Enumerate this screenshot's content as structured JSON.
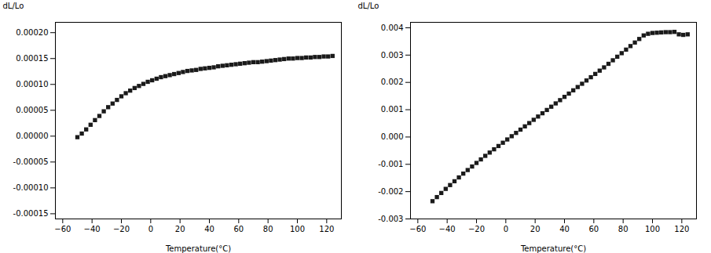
{
  "chart_data": [
    {
      "type": "scatter",
      "xlabel": "Temperature(°C)",
      "ylabel": "dL/Lo",
      "xlim": [
        -65,
        130
      ],
      "ylim": [
        -0.00016,
        0.00022
      ],
      "xticks": [
        -60,
        -40,
        -20,
        0,
        20,
        40,
        60,
        80,
        100,
        120
      ],
      "yticks": [
        {
          "value": -0.00015,
          "label": "-0.00015"
        },
        {
          "value": -0.0001,
          "label": "-0.00010"
        },
        {
          "value": -5e-05,
          "label": "-0.00005"
        },
        {
          "value": 0,
          "label": "0.00000"
        },
        {
          "value": 5e-05,
          "label": "0.00005"
        },
        {
          "value": 0.0001,
          "label": "0.00010"
        },
        {
          "value": 0.00015,
          "label": "0.00015"
        },
        {
          "value": 0.0002,
          "label": "0.00020"
        }
      ],
      "x": [
        -50,
        -47,
        -44,
        -41,
        -38,
        -35,
        -32,
        -29,
        -26,
        -23,
        -20,
        -17,
        -14,
        -11,
        -8,
        -5,
        -2,
        1,
        4,
        7,
        10,
        13,
        16,
        19,
        22,
        25,
        28,
        31,
        34,
        37,
        40,
        43,
        46,
        49,
        52,
        55,
        58,
        61,
        64,
        67,
        70,
        73,
        76,
        79,
        82,
        85,
        88,
        91,
        94,
        97,
        100,
        103,
        106,
        109,
        112,
        115,
        118,
        121,
        124
      ],
      "values": [
        -2e-06,
        5e-06,
        1.3e-05,
        2.2e-05,
        3.1e-05,
        3.9e-05,
        4.8e-05,
        5.6e-05,
        6.3e-05,
        7e-05,
        7.7e-05,
        8.3e-05,
        8.8e-05,
        9.3e-05,
        9.7e-05,
        0.000101,
        0.000105,
        0.000108,
        0.000111,
        0.000114,
        0.000116,
        0.000118,
        0.00012,
        0.000122,
        0.000124,
        0.000126,
        0.000127,
        0.000128,
        0.00013,
        0.000131,
        0.000132,
        0.000133,
        0.000135,
        0.000136,
        0.000137,
        0.000138,
        0.000139,
        0.00014,
        0.000141,
        0.000142,
        0.000143,
        0.000143,
        0.000144,
        0.000145,
        0.000146,
        0.000147,
        0.000148,
        0.000149,
        0.00015,
        0.00015,
        0.000151,
        0.000151,
        0.000152,
        0.000152,
        0.000153,
        0.000153,
        0.000154,
        0.000154,
        0.000155
      ],
      "color": "#1a1a1a",
      "marker": "square",
      "grid": false
    },
    {
      "type": "scatter",
      "xlabel": "Temperature(°C)",
      "ylabel": "dL/Lo",
      "xlim": [
        -65,
        130
      ],
      "ylim": [
        -0.003,
        0.0042
      ],
      "xticks": [
        -60,
        -40,
        -20,
        0,
        20,
        40,
        60,
        80,
        100,
        120
      ],
      "yticks": [
        {
          "value": -0.003,
          "label": "-0.003"
        },
        {
          "value": -0.002,
          "label": "-0.002"
        },
        {
          "value": -0.001,
          "label": "-0.001"
        },
        {
          "value": 0,
          "label": "0.000"
        },
        {
          "value": 0.001,
          "label": "0.001"
        },
        {
          "value": 0.002,
          "label": "0.002"
        },
        {
          "value": 0.003,
          "label": "0.003"
        },
        {
          "value": 0.004,
          "label": "0.004"
        }
      ],
      "x": [
        -50,
        -47,
        -44,
        -41,
        -38,
        -35,
        -32,
        -29,
        -26,
        -23,
        -20,
        -17,
        -14,
        -11,
        -8,
        -5,
        -2,
        1,
        4,
        7,
        10,
        13,
        16,
        19,
        22,
        25,
        28,
        31,
        34,
        37,
        40,
        43,
        46,
        49,
        52,
        55,
        58,
        61,
        64,
        67,
        70,
        73,
        76,
        79,
        82,
        85,
        88,
        91,
        94,
        97,
        100,
        103,
        106,
        109,
        112,
        115,
        118,
        121,
        124
      ],
      "values": [
        -0.00235,
        -0.0022,
        -0.00205,
        -0.0019,
        -0.00176,
        -0.00162,
        -0.00148,
        -0.00134,
        -0.00121,
        -0.00108,
        -0.00095,
        -0.00082,
        -0.00069,
        -0.00057,
        -0.00045,
        -0.00033,
        -0.00021,
        -9e-05,
        3e-05,
        0.00015,
        0.00027,
        0.00039,
        0.00051,
        0.00063,
        0.00075,
        0.00087,
        0.00099,
        0.00111,
        0.00123,
        0.00135,
        0.00147,
        0.00159,
        0.00171,
        0.00183,
        0.00195,
        0.00207,
        0.00219,
        0.00231,
        0.00243,
        0.00255,
        0.00268,
        0.00281,
        0.00294,
        0.00307,
        0.0032,
        0.00333,
        0.00346,
        0.00359,
        0.00372,
        0.00378,
        0.00381,
        0.00382,
        0.00383,
        0.00384,
        0.00384,
        0.00385,
        0.00376,
        0.00374,
        0.00376
      ],
      "color": "#1a1a1a",
      "marker": "square",
      "grid": false
    }
  ]
}
